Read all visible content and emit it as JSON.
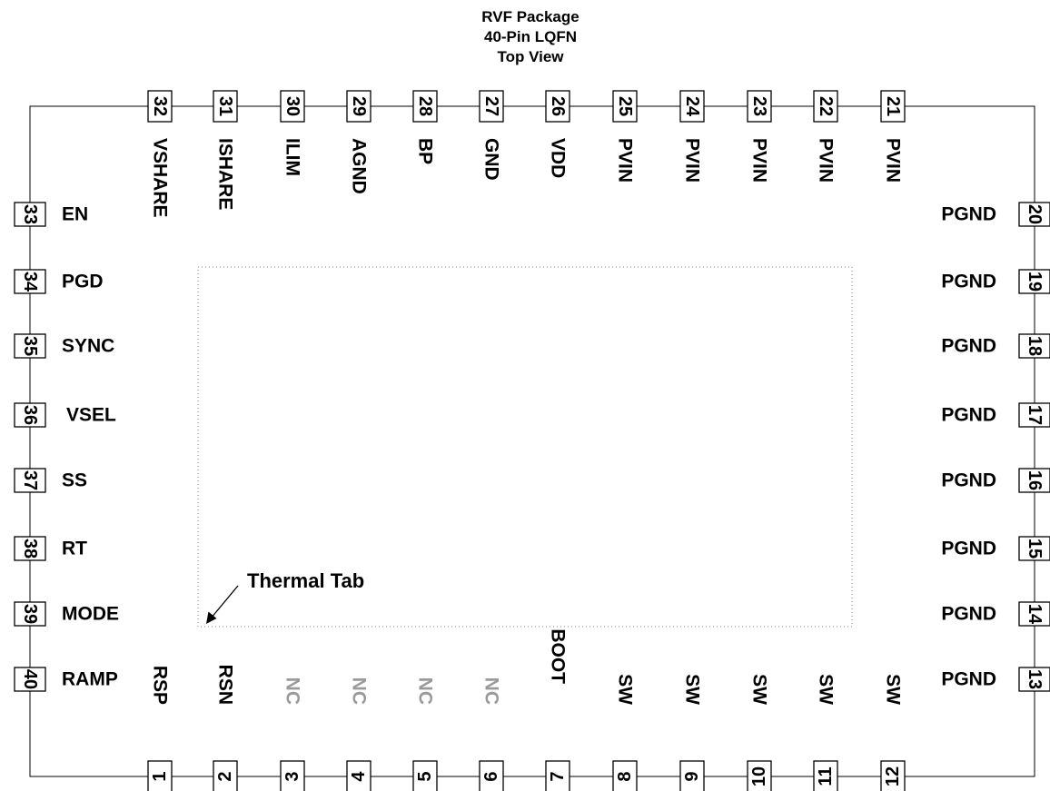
{
  "title": {
    "line1": "RVF Package",
    "line2": "40-Pin LQFN",
    "line3": "Top View"
  },
  "thermal_tab_label": "Thermal Tab",
  "colors": {
    "line": "#000000",
    "nc_text": "#9a9a9a",
    "tab_outline": "#888888"
  },
  "pins": {
    "bottom": [
      {
        "num": "1",
        "name": "RSP",
        "nc": false
      },
      {
        "num": "2",
        "name": "RSN",
        "nc": false
      },
      {
        "num": "3",
        "name": "NC",
        "nc": true
      },
      {
        "num": "4",
        "name": "NC",
        "nc": true
      },
      {
        "num": "5",
        "name": "NC",
        "nc": true
      },
      {
        "num": "6",
        "name": "NC",
        "nc": true
      },
      {
        "num": "7",
        "name": "BOOT",
        "nc": false
      },
      {
        "num": "8",
        "name": "SW",
        "nc": false
      },
      {
        "num": "9",
        "name": "SW",
        "nc": false
      },
      {
        "num": "10",
        "name": "SW",
        "nc": false
      },
      {
        "num": "11",
        "name": "SW",
        "nc": false
      },
      {
        "num": "12",
        "name": "SW",
        "nc": false
      }
    ],
    "right": [
      {
        "num": "13",
        "name": "PGND"
      },
      {
        "num": "14",
        "name": "PGND"
      },
      {
        "num": "15",
        "name": "PGND"
      },
      {
        "num": "16",
        "name": "PGND"
      },
      {
        "num": "17",
        "name": "PGND"
      },
      {
        "num": "18",
        "name": "PGND"
      },
      {
        "num": "19",
        "name": "PGND"
      },
      {
        "num": "20",
        "name": "PGND"
      }
    ],
    "top": [
      {
        "num": "21",
        "name": "PVIN"
      },
      {
        "num": "22",
        "name": "PVIN"
      },
      {
        "num": "23",
        "name": "PVIN"
      },
      {
        "num": "24",
        "name": "PVIN"
      },
      {
        "num": "25",
        "name": "PVIN"
      },
      {
        "num": "26",
        "name": "VDD"
      },
      {
        "num": "27",
        "name": "GND"
      },
      {
        "num": "28",
        "name": "BP"
      },
      {
        "num": "29",
        "name": "AGND"
      },
      {
        "num": "30",
        "name": "ILIM"
      },
      {
        "num": "31",
        "name": "ISHARE"
      },
      {
        "num": "32",
        "name": "VSHARE"
      }
    ],
    "left": [
      {
        "num": "33",
        "name": "EN"
      },
      {
        "num": "34",
        "name": "PGD"
      },
      {
        "num": "35",
        "name": "SYNC"
      },
      {
        "num": "36",
        "name": "VSEL"
      },
      {
        "num": "37",
        "name": "SS"
      },
      {
        "num": "38",
        "name": "RT"
      },
      {
        "num": "39",
        "name": "MODE"
      },
      {
        "num": "40",
        "name": "RAMP"
      }
    ]
  }
}
